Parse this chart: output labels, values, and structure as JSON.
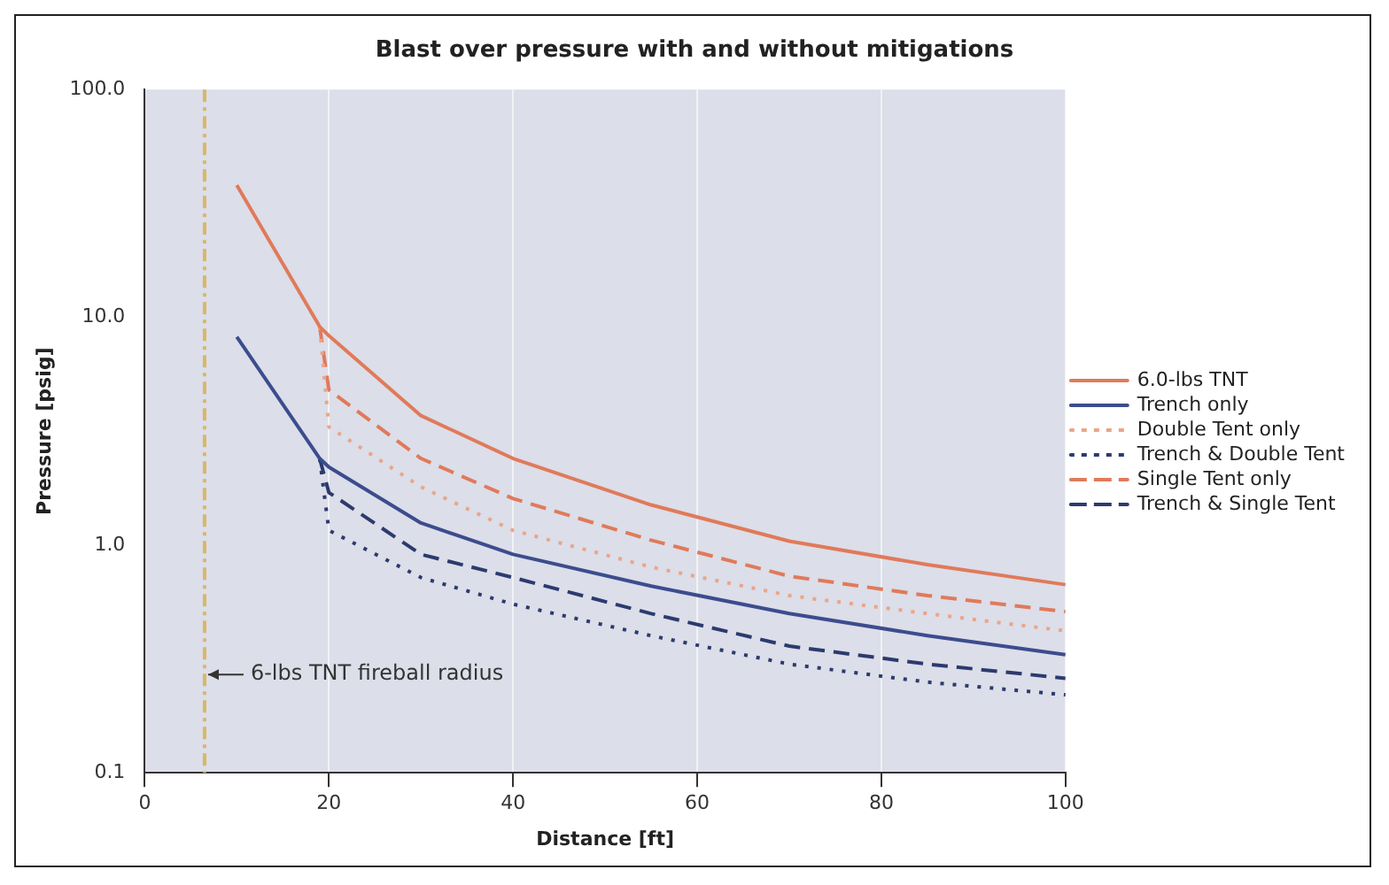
{
  "chart_data": {
    "type": "line",
    "title": "Blast over pressure with and without mitigations",
    "xlabel": "Distance [ft]",
    "ylabel": "Pressure [psig]",
    "log": "y",
    "xlim": [
      0,
      100
    ],
    "xticks": [
      0,
      20,
      40,
      60,
      80,
      100
    ],
    "ylim": [
      0.1,
      100
    ],
    "yticks": [
      {
        "value": 0.1,
        "label": "0.1"
      },
      {
        "value": 1,
        "label": "1.0"
      },
      {
        "value": 10,
        "label": "10.0"
      },
      {
        "value": 100,
        "label": "100.0"
      }
    ],
    "grid": "x",
    "legend": "right",
    "marker": "none",
    "series": [
      {
        "name": "6.0-lbs TNT",
        "color": "#e07a5a",
        "line_style": "solid",
        "x": [
          10,
          19,
          20,
          30,
          40,
          55,
          70,
          85,
          100
        ],
        "values": [
          38,
          9.1,
          8.3,
          3.7,
          2.4,
          1.5,
          1.04,
          0.82,
          0.67
        ]
      },
      {
        "name": "Trench only",
        "color": "#3c4c8e",
        "line_style": "solid",
        "x": [
          10,
          19,
          20,
          30,
          40,
          55,
          70,
          85,
          100
        ],
        "values": [
          8.2,
          2.4,
          2.2,
          1.25,
          0.91,
          0.66,
          0.5,
          0.4,
          0.33
        ]
      },
      {
        "name": "Double Tent only",
        "color": "#eaa58a",
        "line_style": "dotted",
        "x": [
          19,
          20,
          30,
          40,
          55,
          70,
          85,
          100
        ],
        "values": [
          9.1,
          3.3,
          1.8,
          1.16,
          0.8,
          0.6,
          0.5,
          0.42
        ]
      },
      {
        "name": "Trench & Double Tent",
        "color": "#2c3a6e",
        "line_style": "dotted",
        "x": [
          19,
          20,
          30,
          40,
          55,
          70,
          85,
          100
        ],
        "values": [
          2.4,
          1.16,
          0.72,
          0.55,
          0.4,
          0.3,
          0.25,
          0.22
        ]
      },
      {
        "name": "Single Tent only",
        "color": "#e07a5a",
        "line_style": "dashed",
        "x": [
          19,
          20,
          30,
          40,
          55,
          70,
          85,
          100
        ],
        "values": [
          9.1,
          4.8,
          2.4,
          1.6,
          1.05,
          0.73,
          0.6,
          0.51
        ]
      },
      {
        "name": "Trench & Single Tent",
        "color": "#2c3a6e",
        "line_style": "dashed",
        "x": [
          19,
          20,
          30,
          40,
          55,
          70,
          85,
          100
        ],
        "values": [
          2.4,
          1.7,
          0.91,
          0.72,
          0.5,
          0.36,
          0.3,
          0.26
        ]
      }
    ],
    "ref_lines": [
      {
        "axis": "x",
        "value": 6.5,
        "color": "#d8b868",
        "line_style": "dashed"
      }
    ],
    "annotations": [
      {
        "text": "6-lbs TNT fireball radius",
        "x": 6.5,
        "y": 0.27
      }
    ]
  }
}
